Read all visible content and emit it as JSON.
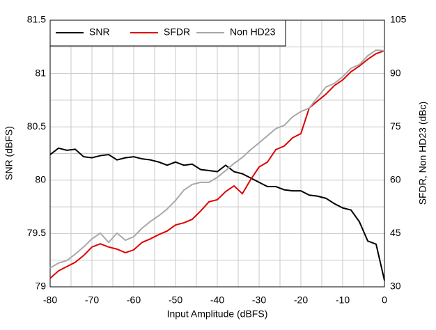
{
  "chart_data": {
    "type": "line",
    "x_label": "Input Amplitude (dBFS)",
    "y_label": "SNR (dBFS)",
    "y2_label": "SFDR, Non HD23 (dBc)",
    "x": [
      -80,
      -78,
      -76,
      -74,
      -72,
      -70,
      -68,
      -66,
      -64,
      -62,
      -60,
      -58,
      -56,
      -54,
      -52,
      -50,
      -48,
      -46,
      -44,
      -42,
      -40,
      -38,
      -36,
      -34,
      -32,
      -30,
      -28,
      -26,
      -24,
      -22,
      -20,
      -18,
      -16,
      -14,
      -12,
      -10,
      -8,
      -6,
      -4,
      -2,
      0
    ],
    "series": [
      {
        "name": "SNR",
        "color": "#000000",
        "values": [
          80.24,
          80.3,
          80.28,
          80.29,
          80.22,
          80.21,
          80.23,
          80.24,
          80.19,
          80.21,
          80.22,
          80.2,
          80.19,
          80.17,
          80.14,
          80.17,
          80.14,
          80.15,
          80.1,
          80.09,
          80.08,
          80.14,
          80.08,
          80.06,
          80.02,
          79.98,
          79.94,
          79.94,
          79.91,
          79.9,
          79.9,
          79.86,
          79.85,
          79.83,
          79.78,
          79.74,
          79.72,
          79.61,
          79.43,
          79.4,
          79.06
        ]
      },
      {
        "name": "SFDR",
        "color": "#e00000",
        "axis": "y2",
        "values": [
          32.4,
          34.5,
          35.7,
          36.9,
          38.8,
          41.2,
          42.1,
          41.2,
          40.6,
          39.6,
          40.4,
          42.5,
          43.5,
          44.7,
          45.7,
          47.4,
          48.0,
          49.0,
          51.3,
          53.9,
          54.5,
          56.8,
          58.4,
          56.2,
          60.2,
          63.7,
          65.1,
          68.6,
          69.6,
          71.9,
          73.1,
          80.3,
          82.3,
          84.2,
          86.6,
          88.2,
          90.5,
          92.1,
          94.0,
          95.6,
          96.4
        ]
      },
      {
        "name": "Non HD23",
        "color": "#a8a8a8",
        "axis": "y2",
        "values": [
          35.3,
          36.7,
          37.4,
          39.2,
          41.2,
          43.5,
          45.1,
          42.5,
          45.1,
          43.1,
          44.1,
          46.5,
          48.4,
          50.0,
          51.9,
          54.3,
          57.2,
          58.8,
          59.4,
          59.4,
          60.8,
          62.7,
          64.7,
          66.4,
          68.6,
          70.5,
          72.5,
          74.5,
          75.4,
          77.8,
          79.3,
          80.3,
          83.3,
          86.2,
          87.2,
          89.1,
          91.5,
          92.5,
          95.0,
          96.6,
          96.4
        ]
      }
    ],
    "xlim": [
      -80,
      0
    ],
    "xticks": [
      -80,
      -70,
      -60,
      -50,
      -40,
      -30,
      -20,
      -10,
      0
    ],
    "ylim": [
      79,
      81.5
    ],
    "yticks": [
      79,
      79.5,
      80,
      80.5,
      81,
      81.5
    ],
    "y2lim": [
      30,
      105
    ],
    "y2ticks": [
      30,
      45,
      60,
      75,
      90,
      105
    ],
    "xgrid": [
      -75,
      -65,
      -55,
      -45,
      -35,
      -25,
      -15,
      -5
    ],
    "ygrid": [
      79.25,
      79.75,
      80.25,
      80.75,
      81.25
    ],
    "grid": true,
    "legend": "top-left"
  }
}
